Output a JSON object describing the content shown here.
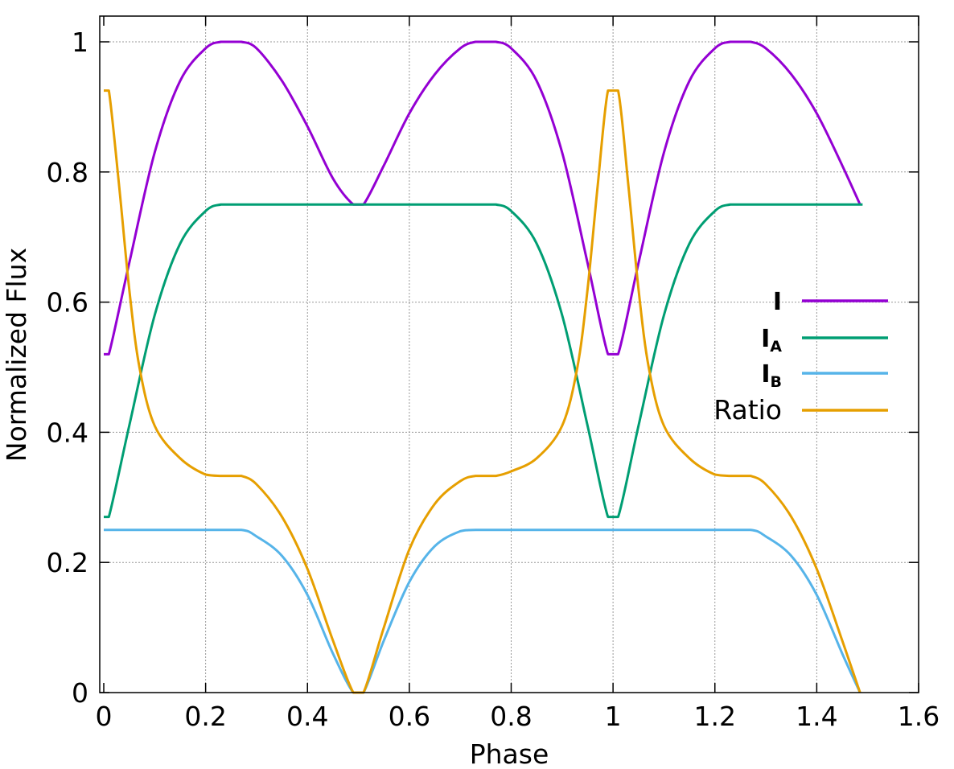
{
  "chart_data": {
    "type": "line",
    "title": "",
    "xlabel": "Phase",
    "ylabel": "Normalized Flux",
    "xlim": [
      0,
      1.6
    ],
    "ylim": [
      0,
      1
    ],
    "xticks": [
      "0",
      "0.2",
      "0.4",
      "0.6",
      "0.8",
      "1",
      "1.2",
      "1.4",
      "1.6"
    ],
    "yticks": [
      "0",
      "0.2",
      "0.4",
      "0.6",
      "0.8",
      "1"
    ],
    "grid": true,
    "legend_position": "right",
    "series": [
      {
        "name": "I",
        "legend_main": "I",
        "legend_sub": "",
        "color": "#9400d3",
        "x": [
          0.0,
          0.01,
          0.05,
          0.1,
          0.15,
          0.2,
          0.23,
          0.25,
          0.27,
          0.3,
          0.35,
          0.4,
          0.45,
          0.49,
          0.51,
          0.55,
          0.6,
          0.65,
          0.7,
          0.73,
          0.75,
          0.77,
          0.8,
          0.85,
          0.9,
          0.95,
          0.99,
          1.01,
          1.05,
          1.1,
          1.15,
          1.2,
          1.23,
          1.25,
          1.27,
          1.3,
          1.35,
          1.4,
          1.45,
          1.485
        ],
        "y": [
          0.52,
          0.52,
          0.66,
          0.83,
          0.94,
          0.99,
          1.0,
          1.0,
          1.0,
          0.99,
          0.94,
          0.87,
          0.79,
          0.75,
          0.75,
          0.81,
          0.89,
          0.95,
          0.99,
          1.0,
          1.0,
          1.0,
          0.99,
          0.94,
          0.83,
          0.66,
          0.52,
          0.52,
          0.66,
          0.83,
          0.94,
          0.99,
          1.0,
          1.0,
          1.0,
          0.99,
          0.95,
          0.89,
          0.81,
          0.75
        ]
      },
      {
        "name": "IA",
        "legend_main": "I",
        "legend_sub": "A",
        "color": "#009e73",
        "x": [
          0.0,
          0.01,
          0.05,
          0.1,
          0.15,
          0.2,
          0.23,
          0.25,
          0.3,
          0.4,
          0.5,
          0.6,
          0.7,
          0.75,
          0.77,
          0.8,
          0.85,
          0.9,
          0.95,
          0.99,
          1.01,
          1.05,
          1.1,
          1.15,
          1.2,
          1.23,
          1.25,
          1.3,
          1.4,
          1.49
        ],
        "y": [
          0.27,
          0.27,
          0.41,
          0.58,
          0.69,
          0.74,
          0.75,
          0.75,
          0.75,
          0.75,
          0.75,
          0.75,
          0.75,
          0.75,
          0.75,
          0.74,
          0.69,
          0.58,
          0.41,
          0.27,
          0.27,
          0.41,
          0.58,
          0.69,
          0.74,
          0.75,
          0.75,
          0.75,
          0.75,
          0.75
        ]
      },
      {
        "name": "IB",
        "legend_main": "I",
        "legend_sub": "B",
        "color": "#56b4e9",
        "x": [
          0.0,
          0.1,
          0.2,
          0.27,
          0.3,
          0.35,
          0.4,
          0.45,
          0.49,
          0.51,
          0.55,
          0.6,
          0.65,
          0.7,
          0.73,
          0.8,
          0.9,
          1.0,
          1.1,
          1.2,
          1.27,
          1.3,
          1.35,
          1.4,
          1.45,
          1.485
        ],
        "y": [
          0.25,
          0.25,
          0.25,
          0.25,
          0.24,
          0.21,
          0.15,
          0.06,
          0.0,
          0.0,
          0.08,
          0.17,
          0.225,
          0.248,
          0.25,
          0.25,
          0.25,
          0.25,
          0.25,
          0.25,
          0.25,
          0.24,
          0.21,
          0.15,
          0.06,
          0.0
        ]
      },
      {
        "name": "Ratio",
        "legend_main": "Ratio",
        "legend_sub": "",
        "color": "#e69f00",
        "x": [
          0.0,
          0.01,
          0.03,
          0.05,
          0.07,
          0.1,
          0.15,
          0.2,
          0.23,
          0.25,
          0.27,
          0.3,
          0.35,
          0.4,
          0.45,
          0.49,
          0.51,
          0.55,
          0.6,
          0.65,
          0.7,
          0.73,
          0.75,
          0.77,
          0.8,
          0.85,
          0.9,
          0.93,
          0.95,
          0.97,
          0.99,
          1.01,
          1.03,
          1.05,
          1.07,
          1.1,
          1.15,
          1.2,
          1.23,
          1.25,
          1.27,
          1.3,
          1.35,
          1.4,
          1.45,
          1.485
        ],
        "y": [
          0.925,
          0.925,
          0.78,
          0.62,
          0.5,
          0.41,
          0.36,
          0.335,
          0.333,
          0.333,
          0.333,
          0.32,
          0.27,
          0.19,
          0.08,
          0.0,
          0.0,
          0.1,
          0.22,
          0.29,
          0.325,
          0.333,
          0.333,
          0.333,
          0.34,
          0.36,
          0.41,
          0.5,
          0.62,
          0.78,
          0.925,
          0.925,
          0.78,
          0.62,
          0.5,
          0.41,
          0.36,
          0.335,
          0.333,
          0.333,
          0.333,
          0.32,
          0.27,
          0.19,
          0.08,
          0.0
        ]
      }
    ]
  }
}
